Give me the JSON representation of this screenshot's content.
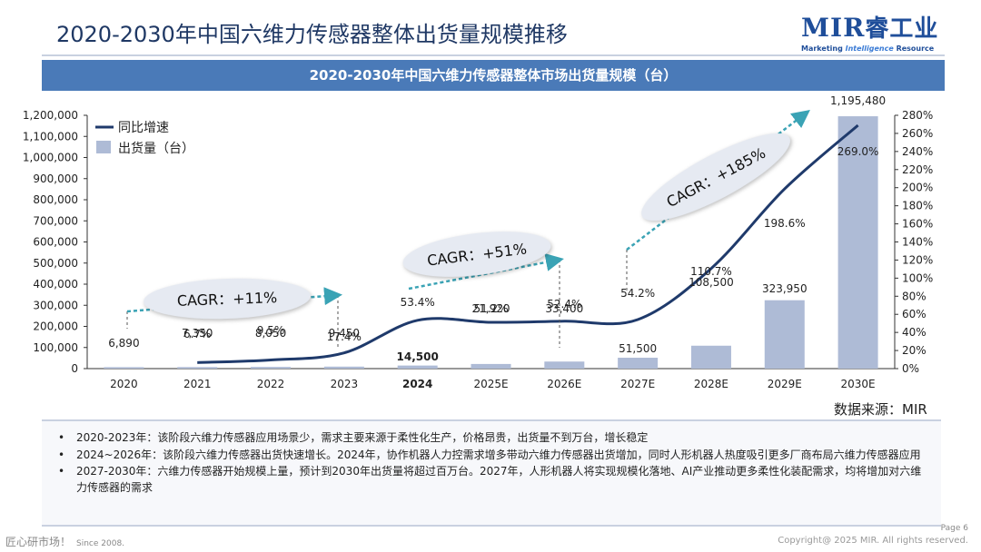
{
  "page": {
    "title": "2020-2030年中国六维力传感器整体出货量规模推移",
    "logo_main": "MIR",
    "logo_cn": "睿工业",
    "logo_sub_1": "Marketing ",
    "logo_sub_2": "Intelligence",
    "logo_sub_3": " Resource",
    "banner": "2020-2030年中国六维力传感器整体市场出货量规模（台）",
    "source": "数据来源：MIR",
    "notes": [
      "2020-2023年：该阶段六维力传感器应用场景少，需求主要来源于柔性化生产，价格昂贵，出货量不到万台，增长稳定",
      "2024~2026年：该阶段六维力传感器出货快速增长。2024年，协作机器人力控需求增多带动六维力传感器出货增加，同时人形机器人热度吸引更多厂商布局六维力传感器应用",
      "2027-2030年：六维力传感器开始规模上量，预计到2030年出货量将超过百万台。2027年，人形机器人将实现规模化落地、AI产业推动更多柔性化装配需求，均将增加对六维力传感器的需求"
    ],
    "bullet": "•",
    "footer_left": "匠心研市场！",
    "footer_since": "Since 2008.",
    "page_num": "Page 6",
    "copyright": "Copyright@ 2025 MIR. All rights reserved."
  },
  "chart_data": {
    "type": "bar",
    "categories": [
      "2020",
      "2021",
      "2022",
      "2023",
      "2024",
      "2025E",
      "2026E",
      "2027E",
      "2028E",
      "2029E",
      "2030E"
    ],
    "bold_category": "2024",
    "series": [
      {
        "name": "出货量（台）",
        "type": "bar",
        "axis": "left",
        "values": [
          6890,
          7350,
          8050,
          9450,
          14500,
          21920,
          33400,
          51500,
          108500,
          323950,
          1195480
        ],
        "labels": [
          "6,890",
          "7,350",
          "8,050",
          "9,450",
          "14,500",
          "21,920",
          "33,400",
          "51,500",
          "108,500",
          "323,950",
          "1,195,480"
        ]
      },
      {
        "name": "同比增速",
        "type": "line",
        "axis": "right",
        "values": [
          null,
          6.7,
          9.5,
          17.4,
          53.4,
          51.2,
          52.4,
          54.2,
          110.7,
          198.6,
          269.0
        ],
        "labels": [
          "",
          "6.7%",
          "9.5%",
          "17.4%",
          "53.4%",
          "51.2%",
          "52.4%",
          "54.2%",
          "110.7%",
          "198.6%",
          "269.0%"
        ]
      }
    ],
    "y_left": {
      "min": 0,
      "max": 1200000,
      "ticks": [
        "0",
        "100,000",
        "200,000",
        "300,000",
        "400,000",
        "500,000",
        "600,000",
        "700,000",
        "800,000",
        "900,000",
        "1,000,000",
        "1,100,000",
        "1,200,000"
      ]
    },
    "y_right": {
      "min": 0,
      "max": 280,
      "ticks": [
        "0%",
        "20%",
        "40%",
        "60%",
        "80%",
        "100%",
        "120%",
        "140%",
        "160%",
        "180%",
        "200%",
        "220%",
        "240%",
        "260%",
        "280%"
      ]
    },
    "legend_position": "top-left",
    "grid": false,
    "annotations": [
      {
        "text": "CAGR：+11%",
        "from": "2020",
        "to": "2023"
      },
      {
        "text": "CAGR：+51%",
        "from": "2024",
        "to": "2026E"
      },
      {
        "text": "CAGR：+185%",
        "from": "2027E",
        "to": "2030E"
      }
    ],
    "colors": {
      "bar": "#aebbd6",
      "line": "#1f3a6b",
      "arrow": "#3aa3b5",
      "bubble": "#e6eaf2",
      "axis": "#333333"
    }
  }
}
